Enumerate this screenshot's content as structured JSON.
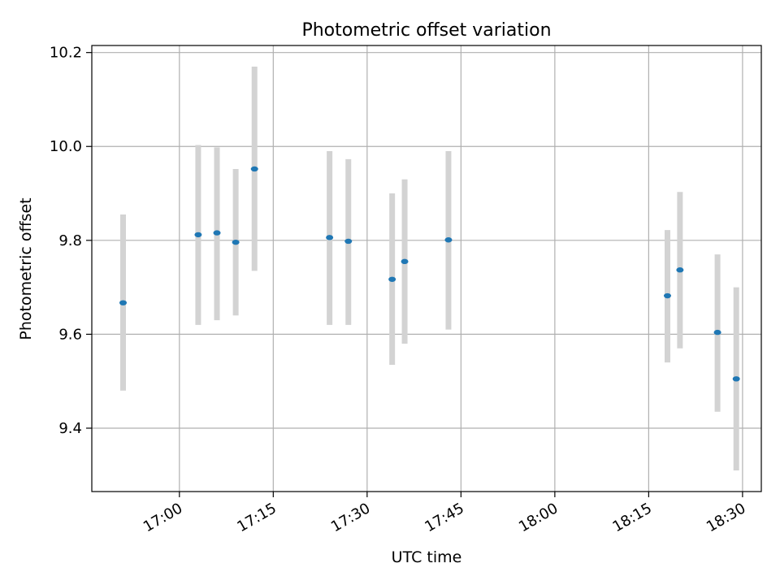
{
  "chart_data": {
    "type": "scatter",
    "title": "Photometric offset variation",
    "xlabel": "UTC time",
    "ylabel": "Photometric offset",
    "grid": true,
    "legend": "none",
    "xlim": [
      "16:46",
      "18:33"
    ],
    "ylim": [
      9.265,
      10.215
    ],
    "x_ticks": [
      "17:00",
      "17:15",
      "17:30",
      "17:45",
      "18:00",
      "18:15",
      "18:30"
    ],
    "y_ticks": [
      "9.4",
      "9.6",
      "9.8",
      "10.0",
      "10.2"
    ],
    "series": [
      {
        "x": [
          "16:51",
          "17:03",
          "17:06",
          "17:09",
          "17:12",
          "17:24",
          "17:27",
          "17:34",
          "17:36",
          "17:43",
          "18:18",
          "18:20",
          "18:26",
          "18:29"
        ],
        "y": [
          9.667,
          9.812,
          9.816,
          9.796,
          9.952,
          9.806,
          9.798,
          9.717,
          9.755,
          9.801,
          9.682,
          9.737,
          9.604,
          9.505
        ],
        "y_low": [
          9.48,
          9.62,
          9.63,
          9.64,
          9.735,
          9.62,
          9.62,
          9.535,
          9.58,
          9.61,
          9.54,
          9.57,
          9.435,
          9.31
        ],
        "y_high": [
          9.855,
          10.003,
          9.998,
          9.952,
          10.17,
          9.99,
          9.973,
          9.9,
          9.93,
          9.99,
          9.822,
          9.903,
          9.77,
          9.7
        ]
      }
    ],
    "colors": {
      "point": "#1f77b4",
      "errorbar": "#d3d3d3",
      "grid": "#b0b0b0",
      "axes": "#000000"
    }
  }
}
